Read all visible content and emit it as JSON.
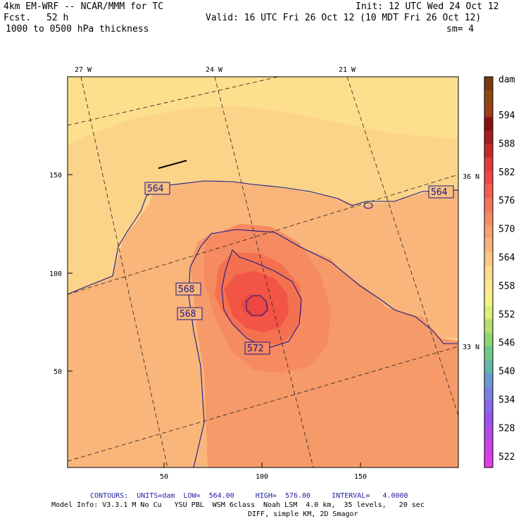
{
  "header": {
    "model_line": "4km EM-WRF -- NCAR/MMM for TC",
    "init": "Init: 12 UTC Wed 24 Oct 12",
    "fcst_label": "Fcst.",
    "fcst_value": "52 h",
    "valid": "Valid: 16 UTC Fri 26 Oct 12 (10 MDT Fri 26 Oct 12)",
    "field": "1000 to 0500 hPa thickness",
    "smoothing": "sm= 4"
  },
  "map": {
    "lon_labels": [
      "27 W",
      "24 W",
      "21 W"
    ],
    "lat_labels": [
      "36 N",
      "33 N"
    ],
    "y_ticks": [
      "150",
      "100",
      "50"
    ],
    "x_ticks": [
      "50",
      "100",
      "150"
    ],
    "contour_labels": [
      "564",
      "564",
      "568",
      "568",
      "572"
    ],
    "colors": {
      "thickness_552_558": "#fdea8e",
      "thickness_558_564": "#fcd489",
      "thickness_564_570": "#f9b57a",
      "thickness_570_576": "#f68d62",
      "contour_line": "#1a1a8c"
    }
  },
  "colorbar": {
    "unit": "dam",
    "labels": [
      "594",
      "588",
      "582",
      "576",
      "570",
      "564",
      "558",
      "552",
      "546",
      "540",
      "534",
      "528",
      "522"
    ],
    "colors": [
      "#7a3a10",
      "#8c4a10",
      "#9e3d17",
      "#8b1010",
      "#a81e1e",
      "#c82a2a",
      "#e03c3c",
      "#f04848",
      "#f45d4f",
      "#f4745c",
      "#f68a66",
      "#f8a070",
      "#fab47a",
      "#fcc885",
      "#fdda8d",
      "#fde88f",
      "#f6f28a",
      "#dcf078",
      "#b4e070",
      "#8fd670",
      "#70c98a",
      "#64b8a8",
      "#6a9ad0",
      "#7a80e0",
      "#8a66ec",
      "#9c52ee",
      "#b44ae4",
      "#d040e8",
      "#e23ce8"
    ]
  },
  "footer": {
    "contours": "CONTOURS:  UNITS=dam  LOW=  564.00     HIGH=  576.00     INTERVAL=   4.0000",
    "model_info": "Model Info: V3.3.1 M No Cu   YSU PBL  WSM 6class  Noah LSM  4.0 km,  35 levels,   20 sec",
    "diff": "DIFF, simple KM, 2D Smagor"
  }
}
